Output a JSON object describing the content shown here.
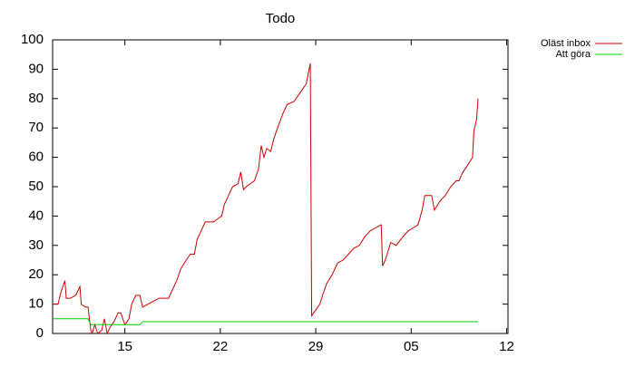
{
  "chart_data": {
    "type": "line",
    "title": "Todo",
    "xlim": [
      -5.3,
      28.1
    ],
    "xticks": [
      {
        "value": 0,
        "label": "15"
      },
      {
        "value": 7,
        "label": "22"
      },
      {
        "value": 14,
        "label": "29"
      },
      {
        "value": 21,
        "label": "05"
      },
      {
        "value": 28,
        "label": "12"
      }
    ],
    "ylim": [
      0,
      100
    ],
    "yticks": [
      0,
      10,
      20,
      30,
      40,
      50,
      60,
      70,
      80,
      90,
      100
    ],
    "grid": false,
    "legend": "outside-top-right",
    "series": [
      {
        "name": "Oläst inbox",
        "color": "#cc0000",
        "x": [
          -5.3,
          -4.9,
          -4.7,
          -4.4,
          -4.3,
          -4.0,
          -3.6,
          -3.3,
          -3.2,
          -2.9,
          -2.7,
          -2.5,
          -2.4,
          -2.2,
          -2.0,
          -1.7,
          -1.5,
          -1.3,
          -1.1,
          -0.8,
          -0.5,
          -0.3,
          0,
          0.3,
          0.5,
          0.8,
          1.1,
          1.3,
          1.7,
          2.1,
          2.5,
          3.2,
          3.5,
          3.8,
          4.1,
          4.5,
          4.8,
          5.1,
          5.3,
          5.6,
          5.9,
          6.5,
          6.8,
          7.1,
          7.3,
          7.6,
          7.9,
          8.3,
          8.5,
          8.7,
          8.9,
          9.5,
          9.8,
          10.0,
          10.2,
          10.4,
          10.7,
          10.9,
          11.2,
          11.6,
          11.9,
          12.4,
          12.7,
          13.0,
          13.3,
          13.6,
          13.7,
          14.0,
          14.3,
          14.5,
          14.8,
          15.2,
          15.6,
          16.0,
          16.4,
          16.8,
          17.2,
          17.6,
          18.0,
          18.4,
          18.8,
          18.9,
          19.1,
          19.5,
          19.9,
          20.4,
          20.8,
          21.5,
          21.8,
          22.0,
          22.5,
          22.7,
          23.1,
          23.5,
          23.9,
          24.3,
          24.5,
          24.8,
          25.1,
          25.5,
          25.6,
          25.8,
          25.9
        ],
        "values": [
          10,
          10,
          14,
          18,
          12,
          12,
          13,
          16,
          10,
          9,
          9,
          1,
          0,
          3,
          0,
          1,
          5,
          0,
          2,
          4,
          7,
          7,
          3,
          5,
          10,
          13,
          13,
          9,
          10,
          11,
          12,
          12,
          15,
          18,
          22,
          25,
          27,
          27,
          32,
          35,
          38,
          38,
          39,
          40,
          44,
          47,
          50,
          51,
          55,
          49,
          50,
          52,
          56,
          64,
          60,
          63,
          62,
          66,
          70,
          75,
          78,
          79,
          81,
          83,
          85,
          92,
          6,
          8,
          10,
          13,
          17,
          20,
          24,
          25,
          27,
          29,
          30,
          33,
          35,
          36,
          37,
          23,
          25,
          31,
          30,
          33,
          35,
          37,
          42,
          47,
          47,
          42,
          45,
          47,
          50,
          52,
          52,
          55,
          57,
          60,
          69,
          73,
          80
        ]
      },
      {
        "name": "Att göra",
        "color": "#00cc00",
        "x": [
          -5.3,
          -2.7,
          -2.5,
          1.1,
          1.3,
          25.9
        ],
        "values": [
          5,
          5,
          3,
          3,
          4,
          4
        ]
      }
    ]
  }
}
